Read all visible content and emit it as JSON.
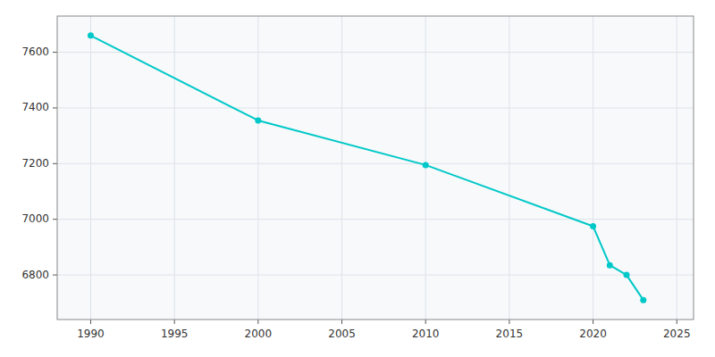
{
  "chart_data": {
    "type": "line",
    "x": [
      1990,
      2000,
      2010,
      2020,
      2021,
      2022,
      2023
    ],
    "values": [
      7660,
      7355,
      7195,
      6975,
      6835,
      6800,
      6710
    ],
    "color": "#00C8C8",
    "marker": "circle",
    "xlim": [
      1988,
      2026
    ],
    "ylim": [
      6640,
      7730
    ],
    "xticks": [
      1990,
      1995,
      2000,
      2005,
      2010,
      2015,
      2020,
      2025
    ],
    "yticks": [
      6800,
      7000,
      7200,
      7400,
      7600
    ],
    "grid": true
  }
}
